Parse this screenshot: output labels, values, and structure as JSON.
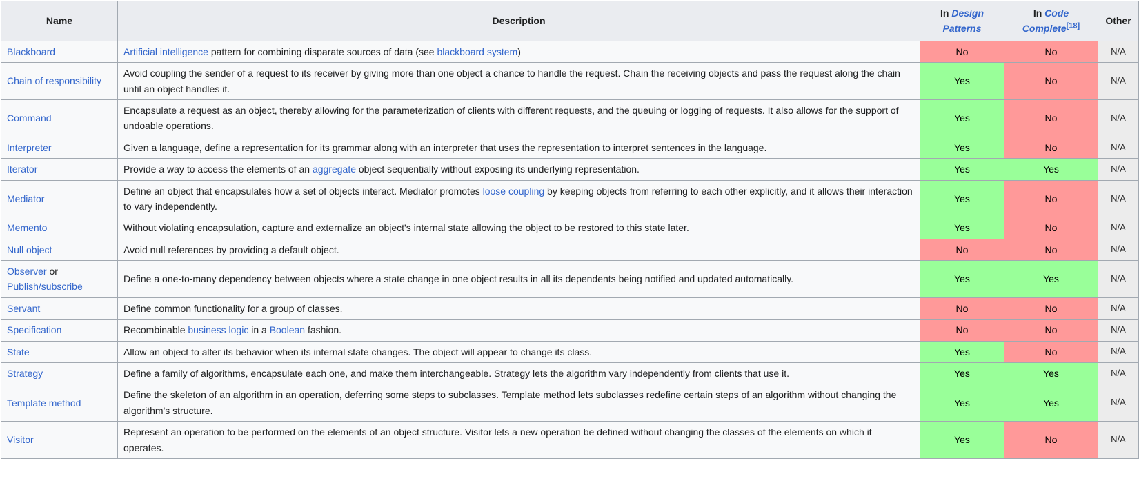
{
  "colors": {
    "border": "#a2a9b1",
    "header_bg": "#eaecf0",
    "row_bg": "#f8f9fa",
    "link": "#3366cc",
    "yes_bg": "#99ff99",
    "no_bg": "#ff9999",
    "na_bg": "#ececec",
    "na_text": "#2c2c2c"
  },
  "table": {
    "header": {
      "name": "Name",
      "description": "Description",
      "in_design_patterns": {
        "prefix": "In ",
        "link": "Design Patterns"
      },
      "in_code_complete": {
        "prefix": "In ",
        "link": "Code Complete",
        "ref": "[18]"
      },
      "other": "Other"
    },
    "rows": [
      {
        "name": [
          {
            "text": "Blackboard",
            "link": true
          }
        ],
        "description": [
          {
            "text": "Artificial intelligence",
            "link": true
          },
          {
            "text": " pattern for combining disparate sources of data (see "
          },
          {
            "text": "blackboard system",
            "link": true
          },
          {
            "text": ")"
          }
        ],
        "in_design_patterns": "No",
        "in_code_complete": "No",
        "other": "N/A"
      },
      {
        "name": [
          {
            "text": "Chain of responsibility",
            "link": true
          }
        ],
        "description": [
          {
            "text": "Avoid coupling the sender of a request to its receiver by giving more than one object a chance to handle the request. Chain the receiving objects and pass the request along the chain until an object handles it."
          }
        ],
        "in_design_patterns": "Yes",
        "in_code_complete": "No",
        "other": "N/A"
      },
      {
        "name": [
          {
            "text": "Command",
            "link": true
          }
        ],
        "description": [
          {
            "text": "Encapsulate a request as an object, thereby allowing for the parameterization of clients with different requests, and the queuing or logging of requests. It also allows for the support of undoable operations."
          }
        ],
        "in_design_patterns": "Yes",
        "in_code_complete": "No",
        "other": "N/A"
      },
      {
        "name": [
          {
            "text": "Interpreter",
            "link": true
          }
        ],
        "description": [
          {
            "text": "Given a language, define a representation for its grammar along with an interpreter that uses the representation to interpret sentences in the language."
          }
        ],
        "in_design_patterns": "Yes",
        "in_code_complete": "No",
        "other": "N/A"
      },
      {
        "name": [
          {
            "text": "Iterator",
            "link": true
          }
        ],
        "description": [
          {
            "text": "Provide a way to access the elements of an "
          },
          {
            "text": "aggregate",
            "link": true
          },
          {
            "text": " object sequentially without exposing its underlying representation."
          }
        ],
        "in_design_patterns": "Yes",
        "in_code_complete": "Yes",
        "other": "N/A"
      },
      {
        "name": [
          {
            "text": "Mediator",
            "link": true
          }
        ],
        "description": [
          {
            "text": "Define an object that encapsulates how a set of objects interact. Mediator promotes "
          },
          {
            "text": "loose coupling",
            "link": true
          },
          {
            "text": " by keeping objects from referring to each other explicitly, and it allows their interaction to vary independently."
          }
        ],
        "in_design_patterns": "Yes",
        "in_code_complete": "No",
        "other": "N/A"
      },
      {
        "name": [
          {
            "text": "Memento",
            "link": true
          }
        ],
        "description": [
          {
            "text": "Without violating encapsulation, capture and externalize an object's internal state allowing the object to be restored to this state later."
          }
        ],
        "in_design_patterns": "Yes",
        "in_code_complete": "No",
        "other": "N/A"
      },
      {
        "name": [
          {
            "text": "Null object",
            "link": true
          }
        ],
        "description": [
          {
            "text": "Avoid null references by providing a default object."
          }
        ],
        "in_design_patterns": "No",
        "in_code_complete": "No",
        "other": "N/A"
      },
      {
        "name": [
          {
            "text": "Observer",
            "link": true
          },
          {
            "text": " or "
          },
          {
            "text": "Publish/subscribe",
            "link": true
          }
        ],
        "description": [
          {
            "text": "Define a one-to-many dependency between objects where a state change in one object results in all its dependents being notified and updated automatically."
          }
        ],
        "in_design_patterns": "Yes",
        "in_code_complete": "Yes",
        "other": "N/A"
      },
      {
        "name": [
          {
            "text": "Servant",
            "link": true
          }
        ],
        "description": [
          {
            "text": "Define common functionality for a group of classes."
          }
        ],
        "in_design_patterns": "No",
        "in_code_complete": "No",
        "other": "N/A"
      },
      {
        "name": [
          {
            "text": "Specification",
            "link": true
          }
        ],
        "description": [
          {
            "text": "Recombinable "
          },
          {
            "text": "business logic",
            "link": true
          },
          {
            "text": " in a "
          },
          {
            "text": "Boolean",
            "link": true
          },
          {
            "text": " fashion."
          }
        ],
        "in_design_patterns": "No",
        "in_code_complete": "No",
        "other": "N/A"
      },
      {
        "name": [
          {
            "text": "State",
            "link": true
          }
        ],
        "description": [
          {
            "text": "Allow an object to alter its behavior when its internal state changes. The object will appear to change its class."
          }
        ],
        "in_design_patterns": "Yes",
        "in_code_complete": "No",
        "other": "N/A"
      },
      {
        "name": [
          {
            "text": "Strategy",
            "link": true
          }
        ],
        "description": [
          {
            "text": "Define a family of algorithms, encapsulate each one, and make them interchangeable. Strategy lets the algorithm vary independently from clients that use it."
          }
        ],
        "in_design_patterns": "Yes",
        "in_code_complete": "Yes",
        "other": "N/A"
      },
      {
        "name": [
          {
            "text": "Template method",
            "link": true
          }
        ],
        "description": [
          {
            "text": "Define the skeleton of an algorithm in an operation, deferring some steps to subclasses. Template method lets subclasses redefine certain steps of an algorithm without changing the algorithm's structure."
          }
        ],
        "in_design_patterns": "Yes",
        "in_code_complete": "Yes",
        "other": "N/A"
      },
      {
        "name": [
          {
            "text": "Visitor",
            "link": true
          }
        ],
        "description": [
          {
            "text": "Represent an operation to be performed on the elements of an object structure. Visitor lets a new operation be defined without changing the classes of the elements on which it operates."
          }
        ],
        "in_design_patterns": "Yes",
        "in_code_complete": "No",
        "other": "N/A"
      }
    ]
  }
}
